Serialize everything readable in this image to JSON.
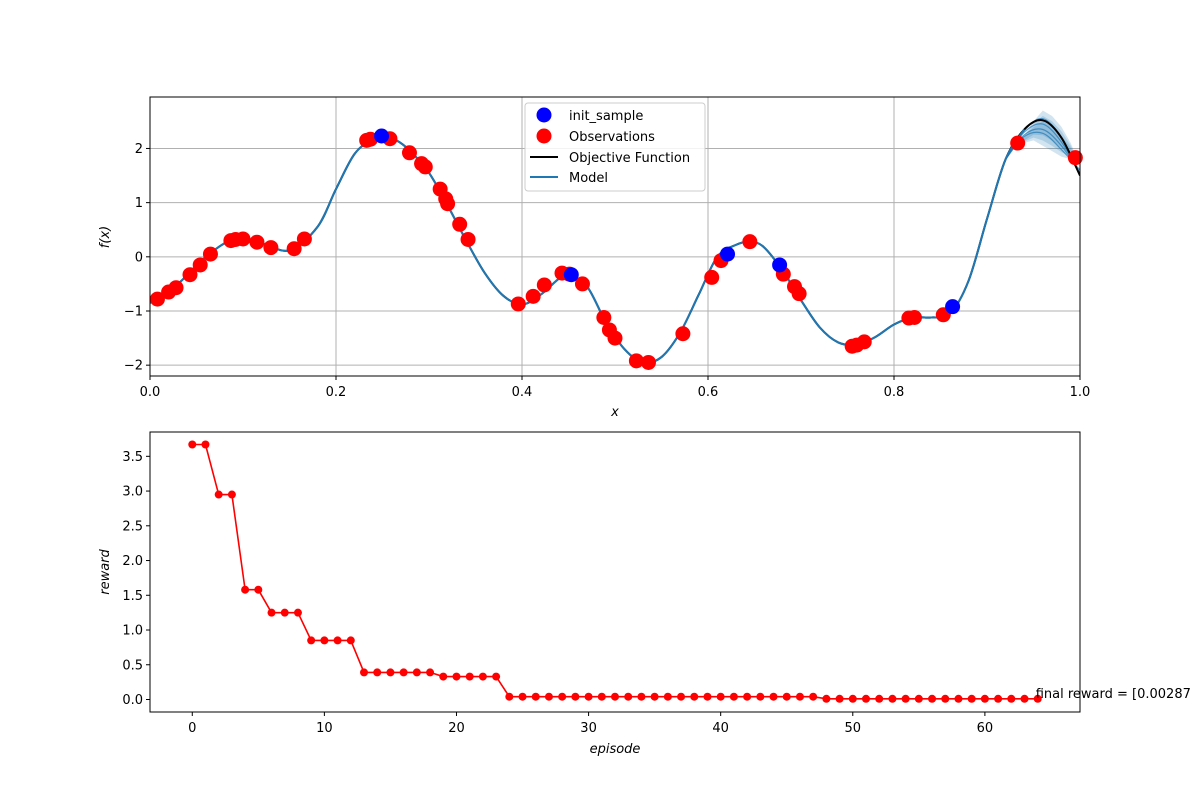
{
  "chart_data": [
    {
      "type": "line",
      "xlabel": "x",
      "ylabel": "f(x)",
      "xlim": [
        0.0,
        1.0
      ],
      "ylim": [
        -2.2,
        2.95
      ],
      "grid": true,
      "legend_position": "top-center",
      "x_ticks": [
        "0.0",
        "0.2",
        "0.4",
        "0.6",
        "0.8",
        "1.0"
      ],
      "y_ticks": [
        "−2",
        "−1",
        "0",
        "1",
        "2"
      ],
      "colors": {
        "objective": "#000000",
        "model": "#1f77b4",
        "observations": "#ff0000",
        "init_sample": "#0000ff",
        "band": "#1f77b4"
      },
      "legend": [
        {
          "label": "init_sample",
          "kind": "marker",
          "color": "#0000ff"
        },
        {
          "label": "Observations",
          "kind": "marker",
          "color": "#ff0000"
        },
        {
          "label": "Objective Function",
          "kind": "line",
          "color": "#000000"
        },
        {
          "label": "Model",
          "kind": "line",
          "color": "#1f77b4"
        }
      ],
      "curve": {
        "x": [
          0.0,
          0.03,
          0.06,
          0.09,
          0.12,
          0.15,
          0.18,
          0.2,
          0.22,
          0.24,
          0.25,
          0.265,
          0.28,
          0.3,
          0.32,
          0.34,
          0.36,
          0.38,
          0.4,
          0.42,
          0.44,
          0.45,
          0.47,
          0.49,
          0.51,
          0.53,
          0.55,
          0.57,
          0.59,
          0.61,
          0.63,
          0.645,
          0.66,
          0.68,
          0.7,
          0.72,
          0.74,
          0.76,
          0.78,
          0.8,
          0.82,
          0.84,
          0.86,
          0.88,
          0.9,
          0.92,
          0.94,
          0.96,
          0.98,
          1.0
        ],
        "y": [
          -0.85,
          -0.5,
          0.0,
          0.32,
          0.25,
          0.12,
          0.55,
          1.25,
          1.9,
          2.18,
          2.22,
          2.15,
          1.95,
          1.55,
          0.95,
          0.3,
          -0.3,
          -0.72,
          -0.88,
          -0.7,
          -0.4,
          -0.34,
          -0.55,
          -1.2,
          -1.7,
          -1.95,
          -1.85,
          -1.4,
          -0.7,
          0.0,
          0.22,
          0.28,
          0.18,
          -0.25,
          -0.8,
          -1.3,
          -1.58,
          -1.62,
          -1.48,
          -1.25,
          -1.12,
          -1.12,
          -1.05,
          -0.45,
          0.7,
          1.8,
          2.35,
          2.52,
          2.2,
          1.5
        ]
      },
      "model_samples": [
        {
          "x": [
            0.92,
            0.94,
            0.96,
            0.98,
            1.0
          ],
          "y": [
            1.8,
            2.25,
            2.35,
            2.05,
            1.55
          ]
        },
        {
          "x": [
            0.92,
            0.94,
            0.96,
            0.98,
            1.0
          ],
          "y": [
            1.8,
            2.3,
            2.45,
            2.12,
            1.52
          ]
        },
        {
          "x": [
            0.92,
            0.94,
            0.96,
            0.98,
            1.0
          ],
          "y": [
            1.8,
            2.22,
            2.28,
            1.98,
            1.6
          ]
        },
        {
          "x": [
            0.92,
            0.94,
            0.96,
            0.98,
            1.0
          ],
          "y": [
            1.8,
            2.33,
            2.55,
            2.2,
            1.5
          ]
        }
      ],
      "uncertainty_band": {
        "x": [
          0.935,
          0.95,
          0.96,
          0.97,
          0.98,
          0.99,
          0.995
        ],
        "upper": [
          2.12,
          2.5,
          2.7,
          2.6,
          2.4,
          2.1,
          1.9
        ],
        "lower": [
          2.08,
          2.15,
          2.05,
          1.95,
          1.85,
          1.8,
          1.78
        ]
      },
      "observations": {
        "x": [
          0.008,
          0.02,
          0.028,
          0.043,
          0.054,
          0.065,
          0.087,
          0.092,
          0.1,
          0.115,
          0.13,
          0.155,
          0.166,
          0.233,
          0.237,
          0.258,
          0.279,
          0.292,
          0.296,
          0.312,
          0.318,
          0.32,
          0.333,
          0.342,
          0.396,
          0.412,
          0.424,
          0.443,
          0.451,
          0.465,
          0.488,
          0.494,
          0.5,
          0.523,
          0.536,
          0.573,
          0.604,
          0.614,
          0.645,
          0.681,
          0.693,
          0.698,
          0.755,
          0.76,
          0.768,
          0.816,
          0.822,
          0.853,
          0.933,
          0.995
        ],
        "y": [
          -0.78,
          -0.65,
          -0.57,
          -0.33,
          -0.15,
          0.05,
          0.3,
          0.32,
          0.33,
          0.27,
          0.17,
          0.15,
          0.33,
          2.15,
          2.17,
          2.18,
          1.92,
          1.72,
          1.66,
          1.25,
          1.07,
          0.98,
          0.6,
          0.32,
          -0.87,
          -0.73,
          -0.52,
          -0.3,
          -0.32,
          -0.5,
          -1.12,
          -1.35,
          -1.5,
          -1.92,
          -1.95,
          -1.42,
          -0.38,
          -0.07,
          0.28,
          -0.32,
          -0.55,
          -0.68,
          -1.65,
          -1.63,
          -1.57,
          -1.13,
          -1.12,
          -1.07,
          2.1,
          1.83
        ]
      },
      "init_sample": {
        "x": [
          0.249,
          0.453,
          0.621,
          0.677,
          0.863
        ],
        "y": [
          2.23,
          -0.33,
          0.05,
          -0.15,
          -0.92
        ]
      }
    },
    {
      "type": "line",
      "xlabel": "episode",
      "ylabel": "reward",
      "xlim": [
        -3.2,
        67.2
      ],
      "ylim": [
        -0.18,
        3.85
      ],
      "grid": false,
      "x_ticks": [
        "0",
        "10",
        "20",
        "30",
        "40",
        "50",
        "60"
      ],
      "y_ticks": [
        "0.0",
        "0.5",
        "1.0",
        "1.5",
        "2.0",
        "2.5",
        "3.0",
        "3.5"
      ],
      "series": [
        {
          "color": "#ff0000",
          "x": [
            0,
            1,
            2,
            3,
            4,
            5,
            6,
            7,
            8,
            9,
            10,
            11,
            12,
            13,
            14,
            15,
            16,
            17,
            18,
            19,
            20,
            21,
            22,
            23,
            24,
            25,
            26,
            27,
            28,
            29,
            30,
            31,
            32,
            33,
            34,
            35,
            36,
            37,
            38,
            39,
            40,
            41,
            42,
            43,
            44,
            45,
            46,
            47,
            48,
            49,
            50,
            51,
            52,
            53,
            54,
            55,
            56,
            57,
            58,
            59,
            60,
            61,
            62,
            63,
            64
          ],
          "values": [
            3.67,
            3.67,
            2.95,
            2.95,
            1.58,
            1.58,
            1.25,
            1.25,
            1.25,
            0.85,
            0.85,
            0.85,
            0.85,
            0.39,
            0.39,
            0.39,
            0.39,
            0.39,
            0.39,
            0.33,
            0.33,
            0.33,
            0.33,
            0.33,
            0.04,
            0.04,
            0.04,
            0.04,
            0.04,
            0.04,
            0.04,
            0.04,
            0.04,
            0.04,
            0.04,
            0.04,
            0.04,
            0.04,
            0.04,
            0.04,
            0.04,
            0.04,
            0.04,
            0.04,
            0.04,
            0.04,
            0.04,
            0.04,
            0.01,
            0.01,
            0.01,
            0.01,
            0.01,
            0.01,
            0.01,
            0.01,
            0.01,
            0.01,
            0.01,
            0.01,
            0.01,
            0.01,
            0.01,
            0.01,
            0.01
          ]
        }
      ],
      "annotation": {
        "text": "final reward = [0.00287",
        "x": 64,
        "y": 0.01
      }
    }
  ]
}
